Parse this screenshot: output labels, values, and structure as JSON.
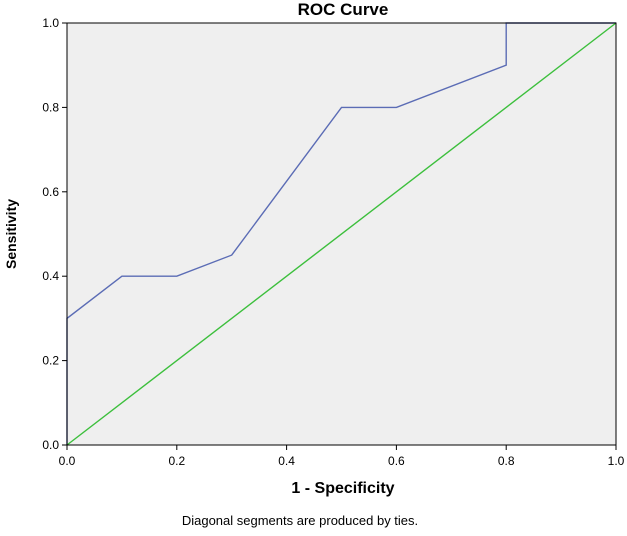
{
  "chart_data": {
    "type": "line",
    "title": "ROC Curve",
    "xlabel": "1 - Specificity",
    "ylabel": "Sensitivity",
    "footnote": "Diagonal segments are produced by ties.",
    "xlim": [
      0.0,
      1.0
    ],
    "ylim": [
      0.0,
      1.0
    ],
    "x_ticks": [
      "0.0",
      "0.2",
      "0.4",
      "0.6",
      "0.8",
      "1.0"
    ],
    "y_ticks": [
      "0.0",
      "0.2",
      "0.4",
      "0.6",
      "0.8",
      "1.0"
    ],
    "grid": false,
    "plot_background": "#efefef",
    "series": [
      {
        "color": "#5b6cb5",
        "x": [
          0.0,
          0.0,
          0.1,
          0.2,
          0.3,
          0.5,
          0.6,
          0.8,
          0.8,
          1.0
        ],
        "y": [
          0.0,
          0.3,
          0.4,
          0.4,
          0.45,
          0.8,
          0.8,
          0.9,
          1.0,
          1.0
        ]
      },
      {
        "color": "#3cbf3c",
        "x": [
          0.0,
          1.0
        ],
        "y": [
          0.0,
          1.0
        ]
      }
    ]
  }
}
